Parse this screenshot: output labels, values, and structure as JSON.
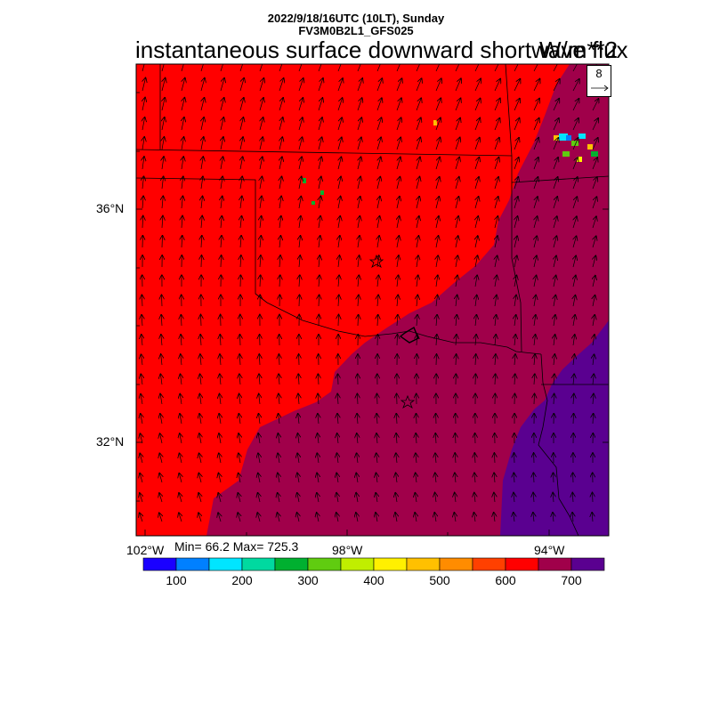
{
  "header": {
    "datetime": "2022/9/18/16UTC (10LT), Sunday",
    "model": "FV3M0B2L1_GFS025",
    "title": "instantaneous surface downward shortwave flux",
    "units": "W/m**2"
  },
  "map": {
    "lat_labels": [
      "36°N",
      "32°N"
    ],
    "lon_labels": [
      "102°W",
      "98°W",
      "94°W"
    ],
    "stats": "Min= 66.2 Max= 725.3",
    "reference_vector": {
      "value": "8"
    },
    "markers": [
      "star",
      "star"
    ]
  },
  "colorbar": {
    "labels": [
      "100",
      "200",
      "300",
      "400",
      "500",
      "600",
      "700"
    ],
    "colors": [
      "#1a00ff",
      "#0080ff",
      "#00e5ff",
      "#00d9a0",
      "#00b030",
      "#60cc10",
      "#c0ee00",
      "#fff000",
      "#ffc000",
      "#ff8c00",
      "#ff4000",
      "#ff0000",
      "#a0004a",
      "#5a0090"
    ]
  },
  "colors": {
    "red_region": "#ff0000",
    "maroon_region": "#a0004a",
    "purple_region": "#5a0090"
  }
}
